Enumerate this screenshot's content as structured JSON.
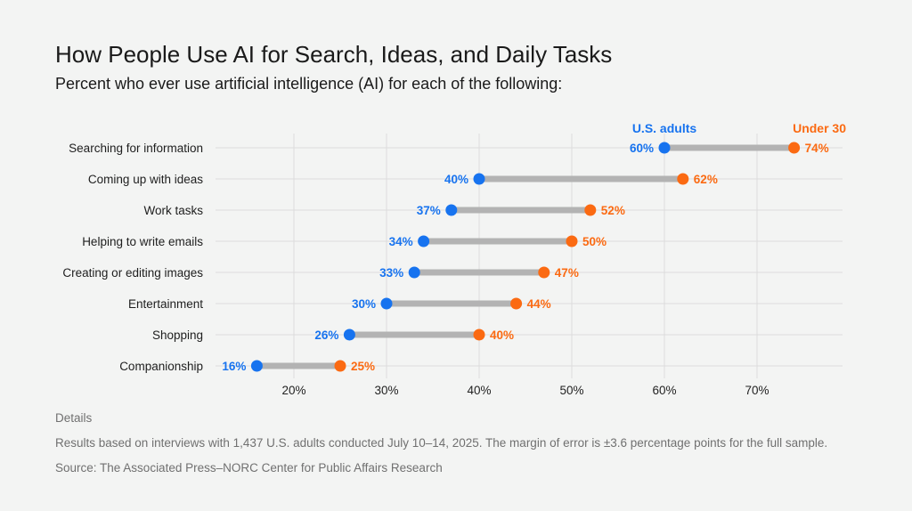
{
  "title": "How People Use AI for Search, Ideas, and Daily Tasks",
  "subtitle": "Percent who ever use artificial intelligence (AI) for each of the following:",
  "chart_data": {
    "type": "dumbbell",
    "title": "How People Use AI for Search, Ideas, and Daily Tasks",
    "subtitle": "Percent who ever use artificial intelligence (AI) for each of the following:",
    "categories": [
      "Searching for information",
      "Coming up with ideas",
      "Work tasks",
      "Helping to write emails",
      "Creating or editing images",
      "Entertainment",
      "Shopping",
      "Companionship"
    ],
    "series": [
      {
        "name": "U.S. adults",
        "color": "#1773ef",
        "values": [
          60,
          40,
          37,
          34,
          33,
          30,
          26,
          16
        ],
        "labels": [
          "60%",
          "40%",
          "37%",
          "34%",
          "33%",
          "30%",
          "26%",
          "16%"
        ]
      },
      {
        "name": "Under 30",
        "color": "#fb6a12",
        "values": [
          74,
          62,
          52,
          50,
          47,
          44,
          40,
          25
        ],
        "labels": [
          "74%",
          "62%",
          "52%",
          "50%",
          "47%",
          "44%",
          "40%",
          "25%"
        ]
      }
    ],
    "xticks": [
      "20%",
      "30%",
      "40%",
      "50%",
      "60%",
      "70%"
    ],
    "xtick_values": [
      20,
      30,
      40,
      50,
      60,
      70
    ],
    "xlim": [
      11,
      80
    ],
    "grid": true,
    "legend": "top, above first row",
    "connector_color": "#b3b3b3"
  },
  "footer": {
    "heading": "Details",
    "note": "Results based on interviews with 1,437 U.S. adults conducted July 10–14, 2025. The margin of error is ±3.6 percentage points for the full sample.",
    "source": "Source: The Associated Press–NORC Center for Public Affairs Research"
  }
}
